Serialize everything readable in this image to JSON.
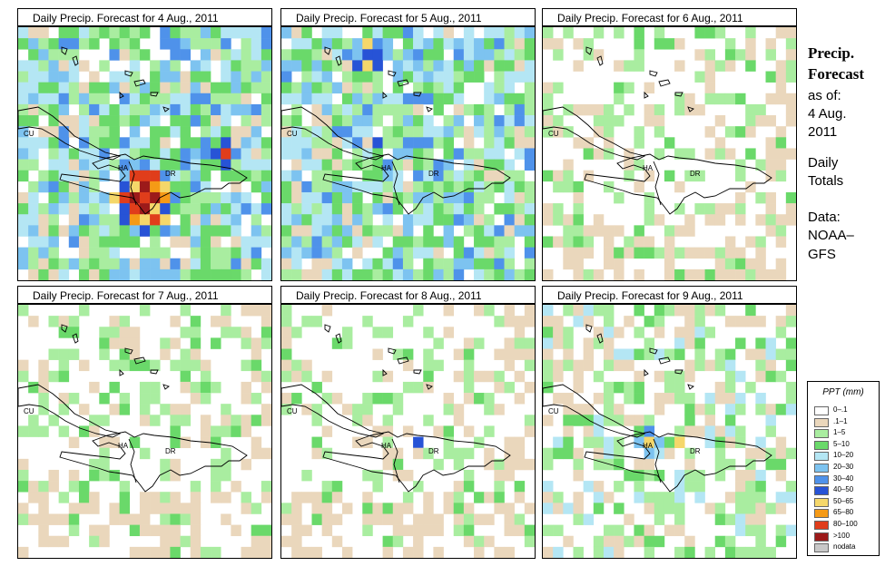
{
  "panels": [
    {
      "title": "Daily Precip. Forecast for  4 Aug., 2011",
      "day": 4,
      "intensity": 1.0
    },
    {
      "title": "Daily Precip. Forecast for  5 Aug., 2011",
      "day": 5,
      "intensity": 0.85
    },
    {
      "title": "Daily Precip. Forecast for  6 Aug., 2011",
      "day": 6,
      "intensity": 0.12
    },
    {
      "title": "Daily Precip. Forecast for  7 Aug., 2011",
      "day": 7,
      "intensity": 0.06
    },
    {
      "title": "Daily Precip. Forecast for  8 Aug., 2011",
      "day": 8,
      "intensity": 0.12
    },
    {
      "title": "Daily Precip. Forecast for  9 Aug., 2011",
      "day": 9,
      "intensity": 0.3
    }
  ],
  "map_labels": {
    "cuba": "CU",
    "haiti": "HA",
    "dominican_republic": "DR"
  },
  "sidebar": {
    "title_line1": "Precip.",
    "title_line2": "Forecast",
    "asof_label": "as of:",
    "date_line1": "4 Aug.",
    "date_line2": "2011",
    "daily_line1": "Daily",
    "daily_line2": "Totals",
    "data_line1": "Data:",
    "data_line2": "NOAA–",
    "data_line3": "GFS"
  },
  "legend": {
    "title": "PPT (mm)",
    "entries": [
      {
        "label": "0–.1",
        "color": "#ffffff"
      },
      {
        "label": ".1–1",
        "color": "#ead7bc"
      },
      {
        "label": "1–5",
        "color": "#a9eda0"
      },
      {
        "label": "5–10",
        "color": "#6ad96a"
      },
      {
        "label": "10–20",
        "color": "#b4e6f4"
      },
      {
        "label": "20–30",
        "color": "#7dc3f0"
      },
      {
        "label": "30–40",
        "color": "#4f92ea"
      },
      {
        "label": "40–50",
        "color": "#2753d6"
      },
      {
        "label": "50–65",
        "color": "#f5d76a"
      },
      {
        "label": "65–80",
        "color": "#f59a16"
      },
      {
        "label": "80–100",
        "color": "#e03d1b"
      },
      {
        "label": ">100",
        "color": "#9c1a1a"
      },
      {
        "label": "nodata",
        "color": "#c8c8c8"
      }
    ]
  }
}
